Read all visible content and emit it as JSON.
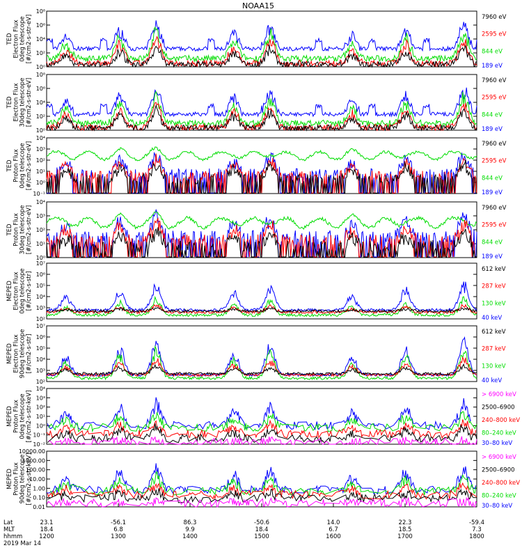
{
  "title": "NOAA15",
  "colors": {
    "black": "#000000",
    "blue": "#0000ff",
    "red": "#ff0000",
    "green": "#00dd00",
    "magenta": "#ff00ff"
  },
  "chart_data": [
    {
      "type": "line",
      "panel": "ted-electron-0",
      "ylabel": [
        "TED",
        "Electron Flux",
        "0deg telescope",
        "[#/cm2-s-str-eV]"
      ],
      "ytick_labels": [
        "10⁰",
        "10²",
        "10⁴",
        "10⁶",
        "10⁸"
      ],
      "ylim_exp": [
        0,
        8
      ],
      "log": true,
      "series": [
        {
          "name": "7960 eV",
          "color": "black"
        },
        {
          "name": "2595 eV",
          "color": "red"
        },
        {
          "name": "844 eV",
          "color": "green"
        },
        {
          "name": "189 eV",
          "color": "blue"
        }
      ],
      "profile": "electron",
      "baseline": {
        "blue": 2.6,
        "green": 1.2,
        "red": 0.5,
        "black": 0.3
      },
      "peak": {
        "blue": 6.6,
        "green": 5.7,
        "red": 4.6,
        "black": 3.4
      }
    },
    {
      "type": "line",
      "panel": "ted-electron-30",
      "ylabel": [
        "TED",
        "Electron Flux",
        "30deg telescope",
        "[#/cm2-s-str-eV]"
      ],
      "ytick_labels": [
        "10⁰",
        "10²",
        "10⁴",
        "10⁶",
        "10⁸"
      ],
      "ylim_exp": [
        0,
        8
      ],
      "log": true,
      "series": [
        {
          "name": "7960 eV",
          "color": "black"
        },
        {
          "name": "2595 eV",
          "color": "red"
        },
        {
          "name": "844 eV",
          "color": "green"
        },
        {
          "name": "189 eV",
          "color": "blue"
        }
      ],
      "profile": "electron",
      "baseline": {
        "blue": 2.3,
        "green": 1.0,
        "red": 0.4,
        "black": 0.3
      },
      "peak": {
        "blue": 6.4,
        "green": 5.5,
        "red": 4.4,
        "black": 3.3
      }
    },
    {
      "type": "line",
      "panel": "ted-proton-0",
      "ylabel": [
        "TED",
        "Proton Flux",
        "0deg telescope",
        "[#/cm2-s-str-eV]"
      ],
      "ytick_labels": [
        "10⁻¹",
        "10⁰",
        "10¹",
        "10²",
        "10³",
        "10⁴"
      ],
      "ylim_exp": [
        -1,
        4
      ],
      "log": true,
      "series": [
        {
          "name": "7960 eV",
          "color": "black"
        },
        {
          "name": "2595 eV",
          "color": "red"
        },
        {
          "name": "844 eV",
          "color": "green"
        },
        {
          "name": "189 eV",
          "color": "blue"
        }
      ],
      "profile": "proton",
      "baseline": {
        "blue": 0.8,
        "green": 2.4,
        "red": 0.6,
        "black": 0.3
      },
      "peak": {
        "blue": 2.8,
        "green": 3.0,
        "red": 2.4,
        "black": 1.9
      }
    },
    {
      "type": "line",
      "panel": "ted-proton-30",
      "ylabel": [
        "TED",
        "Proton Flux",
        "30deg telescope",
        "[#/cm2-s-str-eV]"
      ],
      "ytick_labels": [
        "10⁰",
        "10¹",
        "10²",
        "10³",
        "10⁴"
      ],
      "ylim_exp": [
        0,
        4
      ],
      "log": true,
      "series": [
        {
          "name": "7960 eV",
          "color": "black"
        },
        {
          "name": "2595 eV",
          "color": "red"
        },
        {
          "name": "844 eV",
          "color": "green"
        },
        {
          "name": "189 eV",
          "color": "blue"
        }
      ],
      "profile": "proton",
      "baseline": {
        "blue": 1.5,
        "green": 2.5,
        "red": 1.2,
        "black": 0.8
      },
      "peak": {
        "blue": 3.2,
        "green": 3.2,
        "red": 2.6,
        "black": 2.0
      }
    },
    {
      "type": "line",
      "panel": "meped-electron-0",
      "ylabel": [
        "MEPED",
        "Electron Flux",
        "0deg telescope",
        "[#/cm2-s-str]"
      ],
      "ytick_labels": [
        "10²",
        "10³",
        "10⁴",
        "10⁵",
        "10⁶",
        "10⁷"
      ],
      "ylim_exp": [
        2,
        7
      ],
      "log": true,
      "series": [
        {
          "name": "612 keV",
          "color": "black"
        },
        {
          "name": "287 keV",
          "color": "red"
        },
        {
          "name": "130 keV",
          "color": "green"
        },
        {
          "name": "40 keV",
          "color": "blue"
        }
      ],
      "profile": "meped",
      "baseline": {
        "blue": 2.8,
        "green": 2.35,
        "red": 2.6,
        "black": 2.7
      },
      "peak": {
        "blue": 5.5,
        "green": 4.0,
        "red": 3.3,
        "black": 3.0
      }
    },
    {
      "type": "line",
      "panel": "meped-electron-90",
      "ylabel": [
        "MEPED",
        "Electron Flux",
        "90deg telescope",
        "[#/cm2-s-str]"
      ],
      "ytick_labels": [
        "10²",
        "10³",
        "10⁴",
        "10⁵",
        "10⁶",
        "10⁷"
      ],
      "ylim_exp": [
        2,
        7
      ],
      "log": true,
      "series": [
        {
          "name": "612 keV",
          "color": "black"
        },
        {
          "name": "287 keV",
          "color": "red"
        },
        {
          "name": "130 keV",
          "color": "green"
        },
        {
          "name": "40 keV",
          "color": "blue"
        }
      ],
      "profile": "meped",
      "baseline": {
        "blue": 2.6,
        "green": 2.3,
        "red": 2.6,
        "black": 2.7
      },
      "peak": {
        "blue": 6.0,
        "green": 5.2,
        "red": 4.2,
        "black": 3.5
      }
    },
    {
      "type": "line",
      "panel": "meped-proton-0",
      "ylabel": [
        "MEPED",
        "Proton Flux",
        "0deg telescope",
        "[#/cm2-s-str-keV]"
      ],
      "ytick_labels": [
        "10⁻²",
        "10⁻¹",
        "10⁰",
        "10¹",
        "10²",
        "10³",
        "10⁴"
      ],
      "ylim_exp": [
        -2,
        4
      ],
      "log": true,
      "series": [
        {
          "name": "> 6900 keV",
          "color": "magenta"
        },
        {
          "name": "2500–6900",
          "color": "black"
        },
        {
          "name": "240–800 keV",
          "color": "red"
        },
        {
          "name": "80–240 keV",
          "color": "green"
        },
        {
          "name": "30–80 keV",
          "color": "blue"
        }
      ],
      "profile": "mepedp",
      "baseline": {
        "blue": 0.0,
        "green": -0.2,
        "red": -0.9,
        "black": -1.4,
        "magenta": -1.8
      },
      "peak": {
        "blue": 2.8,
        "green": 1.5,
        "red": 0.6,
        "black": 0.0,
        "magenta": -1.5
      }
    },
    {
      "type": "line",
      "panel": "meped-proton-90",
      "ylabel": [
        "MEPED",
        "Proton Flux",
        "90deg telescope",
        "[#/cm2-s-str-keV]"
      ],
      "ytick_labels": [
        "0.01",
        "0.10",
        "1.00",
        "10.00",
        "100.00",
        "1000.00",
        "10000.00"
      ],
      "ylim_exp": [
        -2,
        4
      ],
      "log": true,
      "series": [
        {
          "name": "> 6900 keV",
          "color": "magenta"
        },
        {
          "name": "2500–6900",
          "color": "black"
        },
        {
          "name": "240–800 keV",
          "color": "red"
        },
        {
          "name": "80–240 keV",
          "color": "green"
        },
        {
          "name": "30–80 keV",
          "color": "blue"
        }
      ],
      "profile": "mepedp",
      "baseline": {
        "blue": -0.2,
        "green": -0.3,
        "red": -0.7,
        "black": -1.1,
        "magenta": -1.6
      },
      "peak": {
        "blue": 2.7,
        "green": 1.4,
        "red": 0.5,
        "black": -0.2,
        "magenta": -1.4
      }
    }
  ],
  "xaxis": {
    "row_labels": [
      "Lat",
      "MLT",
      "hhmm",
      "2019 Mar 14"
    ],
    "lat": [
      "23.1",
      "-56.1",
      "86.3",
      "-50.6",
      "14.0",
      "22.3",
      "-59.4"
    ],
    "mlt": [
      "18.4",
      "6.8",
      "9.9",
      "18.4",
      "6.7",
      "18.5",
      "7.3"
    ],
    "hhmm": [
      "1200",
      "1300",
      "1400",
      "1500",
      "1600",
      "1700",
      "1800"
    ]
  }
}
